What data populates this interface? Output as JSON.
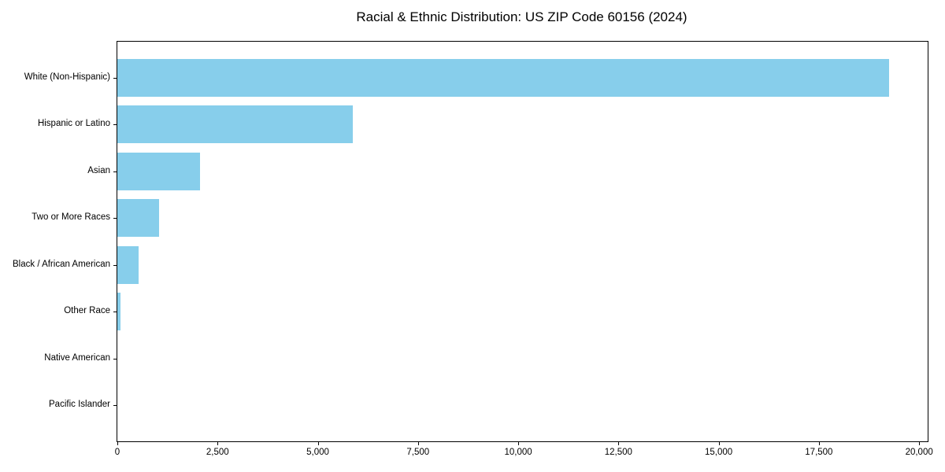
{
  "title": "Racial & Ethnic Distribution: US ZIP Code 60156 (2024)",
  "chart_data": {
    "type": "bar",
    "orientation": "horizontal",
    "title": "Racial & Ethnic Distribution: US ZIP Code 60156 (2024)",
    "categories": [
      "White (Non-Hispanic)",
      "Hispanic or Latino",
      "Asian",
      "Two or More Races",
      "Black / African American",
      "Other Race",
      "Native American",
      "Pacific Islander"
    ],
    "values": [
      19250,
      5880,
      2060,
      1040,
      530,
      80,
      0,
      0
    ],
    "xlabel": "",
    "ylabel": "",
    "xlim": [
      0,
      20213
    ],
    "x_ticks": [
      0,
      2500,
      5000,
      7500,
      10000,
      12500,
      15000,
      17500,
      20000
    ],
    "x_tick_labels": [
      "0",
      "2,500",
      "5,000",
      "7,500",
      "10,000",
      "12,500",
      "15,000",
      "17,500",
      "20,000"
    ],
    "bar_color": "#87CEEB",
    "spine_color": "#000000",
    "grid": false,
    "legend": null
  }
}
